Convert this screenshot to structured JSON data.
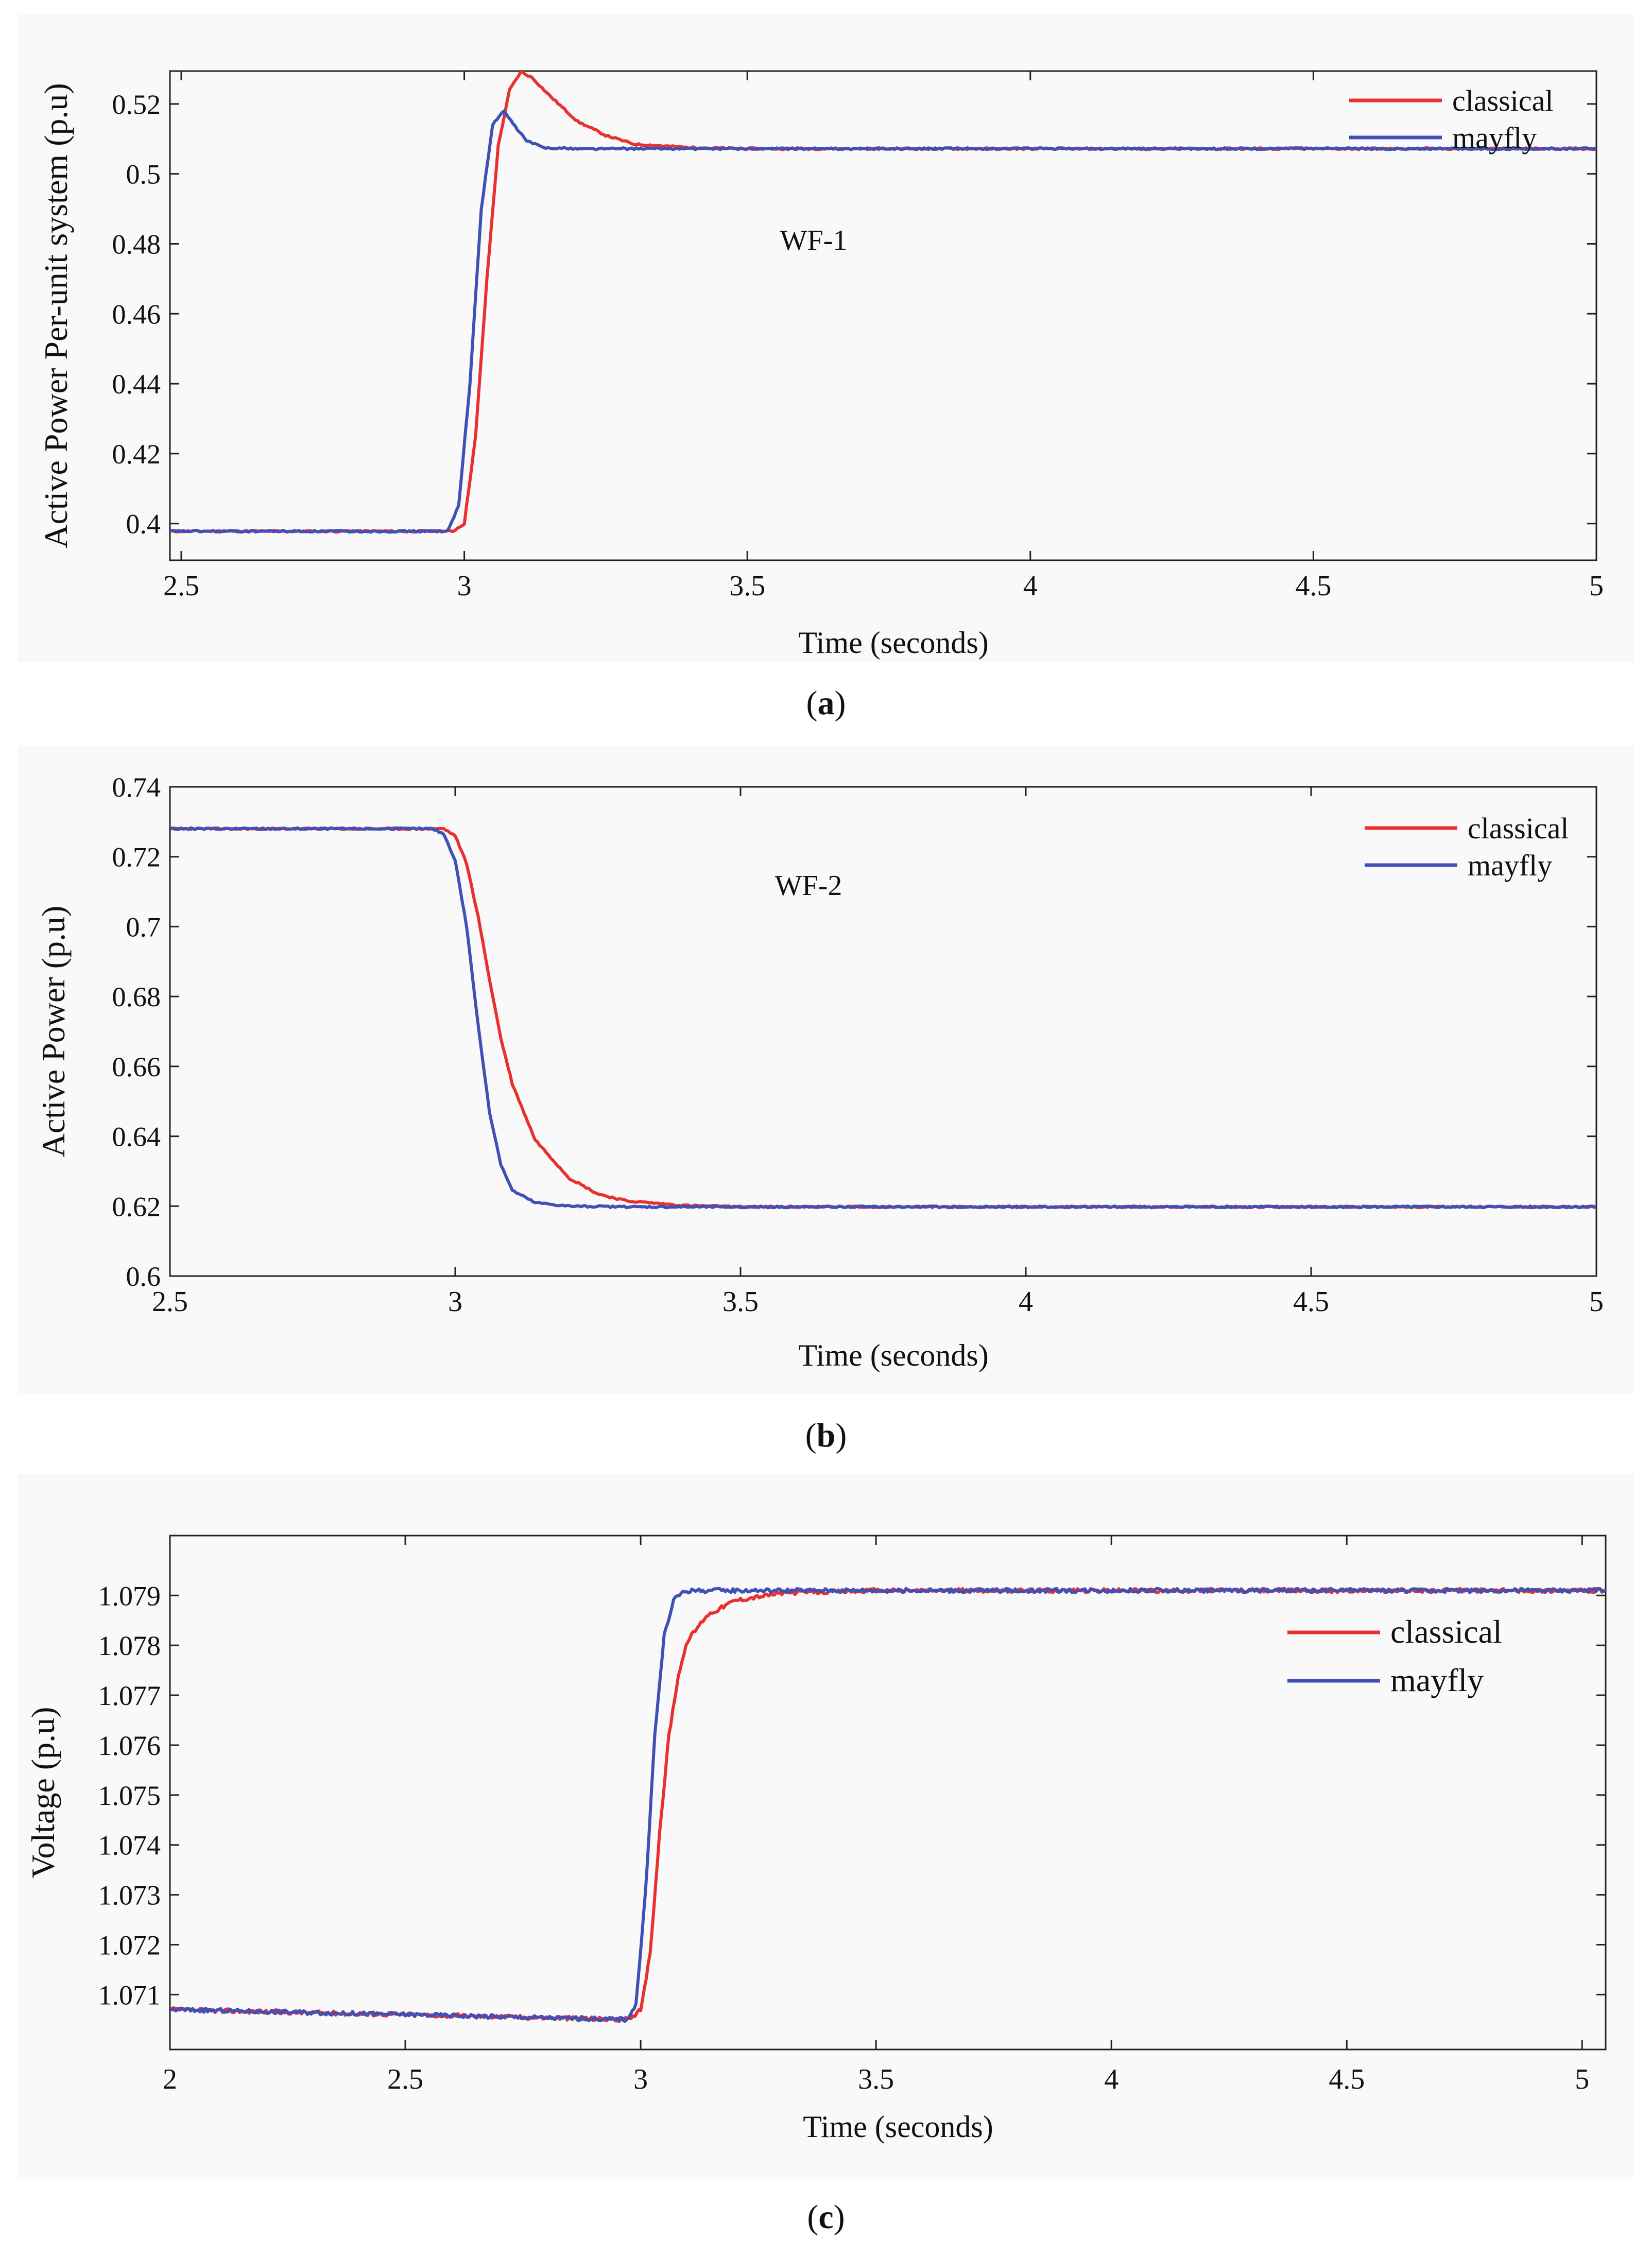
{
  "captions": {
    "a": {
      "open": "(",
      "letter": "a",
      "close": ")"
    },
    "b": {
      "open": "(",
      "letter": "b",
      "close": ")"
    },
    "c": {
      "open": "(",
      "letter": "c",
      "close": ")"
    }
  },
  "colors": {
    "classical": "#e8312f",
    "mayfly": "#3f51b5",
    "axis": "#222222",
    "background": "#f9f9f9"
  },
  "chart_data": [
    {
      "type": "line",
      "panel": "a",
      "title": "",
      "annotation": "WF-1",
      "xlabel": "Time (seconds)",
      "ylabel": "Active Power Per-unit system (p.u)",
      "xlim": [
        2.48,
        5.0
      ],
      "ylim": [
        0.3895,
        0.5294
      ],
      "xticks": [
        2.5,
        3,
        3.5,
        4,
        4.5,
        5
      ],
      "xtick_labels": [
        "2.5",
        "3",
        "3.5",
        "4",
        "4.5",
        "5"
      ],
      "yticks": [
        0.4,
        0.42,
        0.44,
        0.46,
        0.48,
        0.5,
        0.52
      ],
      "ytick_labels": [
        "0.4",
        "0.42",
        "0.44",
        "0.46",
        "0.48",
        "0.5",
        "0.52"
      ],
      "legend_position": "top-right",
      "series": [
        {
          "name": "classical",
          "color": "#e8312f",
          "x": [
            2.48,
            2.98,
            3.0,
            3.02,
            3.04,
            3.06,
            3.08,
            3.1,
            3.12,
            3.15,
            3.2,
            3.25,
            3.3,
            3.4,
            3.5,
            4.0,
            4.5,
            5.0
          ],
          "y": [
            0.3978,
            0.3978,
            0.4,
            0.425,
            0.47,
            0.508,
            0.524,
            0.5292,
            0.5275,
            0.5225,
            0.515,
            0.511,
            0.5085,
            0.5075,
            0.5072,
            0.5072,
            0.5072,
            0.5072
          ]
        },
        {
          "name": "mayfly",
          "color": "#3f51b5",
          "x": [
            2.48,
            2.97,
            2.99,
            3.01,
            3.03,
            3.05,
            3.07,
            3.09,
            3.11,
            3.14,
            3.2,
            3.3,
            3.5,
            4.0,
            4.5,
            5.0
          ],
          "y": [
            0.3978,
            0.3978,
            0.405,
            0.44,
            0.49,
            0.514,
            0.518,
            0.5135,
            0.5095,
            0.5075,
            0.5072,
            0.5072,
            0.5072,
            0.5072,
            0.5072,
            0.5072
          ]
        }
      ]
    },
    {
      "type": "line",
      "panel": "b",
      "title": "",
      "annotation": "WF-2",
      "xlabel": "Time (seconds)",
      "ylabel": "Active Power (p.u)",
      "xlim": [
        2.5,
        5.0
      ],
      "ylim": [
        0.6,
        0.74
      ],
      "xticks": [
        2.5,
        3,
        3.5,
        4,
        4.5,
        5
      ],
      "xtick_labels": [
        "2.5",
        "3",
        "3.5",
        "4",
        "4.5",
        "5"
      ],
      "yticks": [
        0.6,
        0.62,
        0.64,
        0.66,
        0.68,
        0.7,
        0.72,
        0.74
      ],
      "ytick_labels": [
        "0.6",
        "0.62",
        "0.64",
        "0.66",
        "0.68",
        "0.7",
        "0.72",
        "0.74"
      ],
      "legend_position": "top-right",
      "series": [
        {
          "name": "classical",
          "color": "#e8312f",
          "x": [
            2.5,
            2.98,
            3.0,
            3.02,
            3.04,
            3.06,
            3.08,
            3.1,
            3.14,
            3.2,
            3.25,
            3.3,
            3.4,
            3.5,
            4.0,
            4.5,
            5.0
          ],
          "y": [
            0.728,
            0.728,
            0.726,
            0.718,
            0.703,
            0.685,
            0.668,
            0.655,
            0.639,
            0.628,
            0.6235,
            0.6215,
            0.6202,
            0.6198,
            0.6198,
            0.6198,
            0.6198
          ]
        },
        {
          "name": "mayfly",
          "color": "#3f51b5",
          "x": [
            2.5,
            2.96,
            2.98,
            3.0,
            3.02,
            3.04,
            3.06,
            3.08,
            3.1,
            3.14,
            3.2,
            3.3,
            3.5,
            4.0,
            4.5,
            5.0
          ],
          "y": [
            0.728,
            0.728,
            0.7265,
            0.719,
            0.7,
            0.672,
            0.647,
            0.632,
            0.6245,
            0.621,
            0.62,
            0.6198,
            0.6198,
            0.6198,
            0.6198,
            0.6198
          ]
        }
      ]
    },
    {
      "type": "line",
      "panel": "c",
      "title": "",
      "xlabel": "Time (seconds)",
      "ylabel": "Voltage (p.u)",
      "xlim": [
        2.0,
        5.05
      ],
      "ylim": [
        1.0699,
        1.0802
      ],
      "xticks": [
        2,
        2.5,
        3,
        3.5,
        4,
        4.5,
        5
      ],
      "xtick_labels": [
        "2",
        "2.5",
        "3",
        "3.5",
        "4",
        "4.5",
        "5"
      ],
      "yticks": [
        1.071,
        1.072,
        1.073,
        1.074,
        1.075,
        1.076,
        1.077,
        1.078,
        1.079
      ],
      "ytick_labels": [
        "1.071",
        "1.072",
        "1.073",
        "1.074",
        "1.075",
        "1.076",
        "1.077",
        "1.078",
        "1.079"
      ],
      "legend_position": "top-right",
      "series": [
        {
          "name": "classical",
          "color": "#e8312f",
          "x": [
            2.0,
            2.5,
            2.98,
            3.0,
            3.02,
            3.04,
            3.06,
            3.08,
            3.1,
            3.14,
            3.2,
            3.3,
            3.5,
            4.0,
            4.5,
            5.05
          ],
          "y": [
            1.0707,
            1.0706,
            1.0705,
            1.0707,
            1.0718,
            1.0742,
            1.0762,
            1.0774,
            1.0781,
            1.0786,
            1.0789,
            1.07905,
            1.0791,
            1.0791,
            1.0791,
            1.0791
          ]
        },
        {
          "name": "mayfly",
          "color": "#3f51b5",
          "x": [
            2.0,
            2.5,
            2.97,
            2.99,
            3.01,
            3.03,
            3.05,
            3.07,
            3.09,
            3.12,
            3.2,
            3.5,
            4.0,
            4.5,
            5.05
          ],
          "y": [
            1.0707,
            1.0706,
            1.0705,
            1.0708,
            1.073,
            1.0762,
            1.0782,
            1.0789,
            1.07908,
            1.0791,
            1.0791,
            1.0791,
            1.0791,
            1.0791,
            1.0791
          ]
        }
      ]
    }
  ]
}
